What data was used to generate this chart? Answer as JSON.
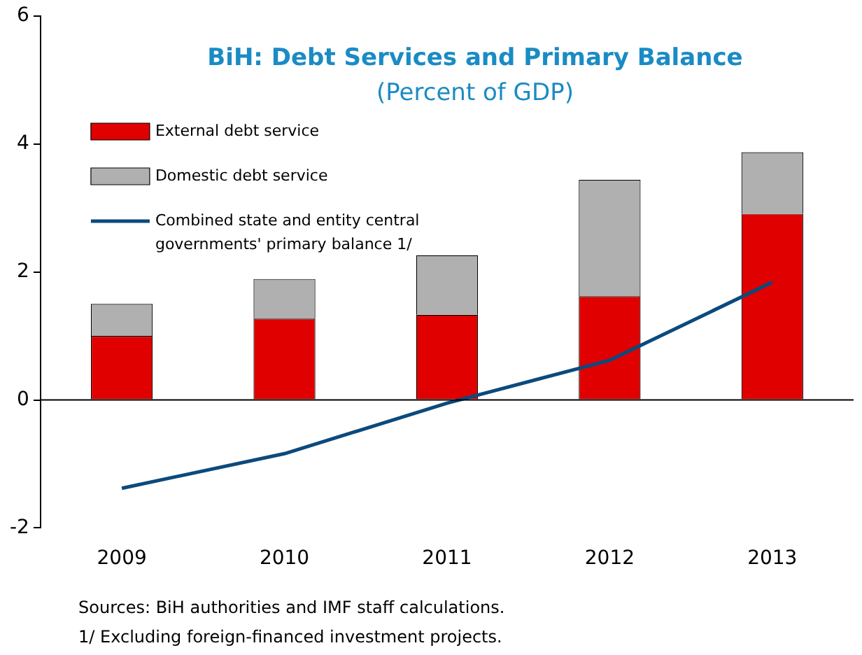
{
  "chart_data": {
    "type": "bar",
    "title": "BiH: Debt Services and Primary Balance",
    "subtitle": "(Percent of GDP)",
    "categories": [
      "2009",
      "2010",
      "2011",
      "2012",
      "2013"
    ],
    "stacked": true,
    "series": [
      {
        "name": "External debt service",
        "color": "#e00000",
        "values": [
          1.0,
          1.27,
          1.33,
          1.62,
          2.91
        ]
      },
      {
        "name": "Domestic debt service",
        "color": "#b0b0b0",
        "values": [
          0.5,
          0.62,
          0.93,
          1.82,
          0.96
        ]
      },
      {
        "name": "Combined state and entity central governments' primary balance 1/",
        "type": "line",
        "color": "#0b4a7d",
        "values": [
          -1.38,
          -0.84,
          -0.05,
          0.62,
          1.84
        ]
      }
    ],
    "ylim": [
      -2,
      6
    ],
    "yticks": [
      -2,
      0,
      2,
      4,
      6
    ],
    "grid": false,
    "legend": "top left",
    "marker": "none",
    "ref_lines": [
      {
        "axis": "y",
        "value": 0
      }
    ],
    "annotations": [
      "Sources: BiH authorities and IMF staff calculations.",
      "1/ Excluding foreign-financed investment projects."
    ]
  }
}
